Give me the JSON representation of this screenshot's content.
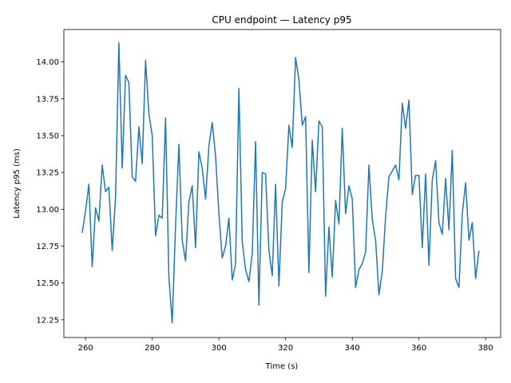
{
  "chart_data": {
    "type": "line",
    "title": "CPU endpoint — Latency p95",
    "xlabel": "Time (s)",
    "ylabel": "Latency p95 (ms)",
    "xlim": [
      253.5,
      384.5
    ],
    "ylim": [
      12.13,
      14.22
    ],
    "xticks": [
      260,
      280,
      300,
      320,
      340,
      360,
      380
    ],
    "yticks": [
      12.25,
      12.5,
      12.75,
      13.0,
      13.25,
      13.5,
      13.75,
      14.0
    ],
    "ytick_labels": [
      "12.25",
      "12.50",
      "12.75",
      "13.00",
      "13.25",
      "13.50",
      "13.75",
      "14.00"
    ],
    "grid": false,
    "color": "#1f77b4",
    "series": [
      {
        "x": [
          259,
          260,
          261,
          262,
          263,
          264,
          265,
          266,
          267,
          268,
          269,
          270,
          271,
          272,
          273,
          274,
          275,
          276,
          277,
          278,
          279,
          280,
          281,
          282,
          283,
          284,
          285,
          286,
          287,
          288,
          289,
          290,
          291,
          292,
          293,
          294,
          295,
          296,
          297,
          298,
          299,
          300,
          301,
          302,
          303,
          304,
          305,
          306,
          307,
          308,
          309,
          310,
          311,
          312,
          313,
          314,
          315,
          316,
          317,
          318,
          319,
          320,
          321,
          322,
          323,
          324,
          325,
          326,
          327,
          328,
          329,
          330,
          331,
          332,
          333,
          334,
          335,
          336,
          337,
          338,
          339,
          340,
          341,
          342,
          343,
          344,
          345,
          346,
          347,
          348,
          349,
          350,
          351,
          352,
          353,
          354,
          355,
          356,
          357,
          358,
          359,
          360,
          361,
          362,
          363,
          364,
          365,
          366,
          367,
          368,
          369,
          370,
          371,
          372,
          373,
          374,
          375,
          376,
          377,
          378
        ],
        "y": [
          12.84,
          12.99,
          13.17,
          12.61,
          13.01,
          12.92,
          13.3,
          13.12,
          13.15,
          12.72,
          13.08,
          14.13,
          13.28,
          13.91,
          13.86,
          13.22,
          13.19,
          13.56,
          13.31,
          14.01,
          13.65,
          13.5,
          12.82,
          12.96,
          12.94,
          13.62,
          12.54,
          12.23,
          12.89,
          13.44,
          12.79,
          12.65,
          13.05,
          13.16,
          12.74,
          13.39,
          13.28,
          13.07,
          13.43,
          13.59,
          13.36,
          12.97,
          12.67,
          12.75,
          12.94,
          12.52,
          12.63,
          13.82,
          12.78,
          12.59,
          12.51,
          12.7,
          13.46,
          12.35,
          13.25,
          13.24,
          12.72,
          12.55,
          13.17,
          12.48,
          13.05,
          13.14,
          13.57,
          13.42,
          14.03,
          13.88,
          13.57,
          13.63,
          12.57,
          13.47,
          13.12,
          13.6,
          13.56,
          12.41,
          12.88,
          12.54,
          13.06,
          12.9,
          13.55,
          12.97,
          13.16,
          13.07,
          12.47,
          12.59,
          12.63,
          12.71,
          13.3,
          12.93,
          12.79,
          12.42,
          12.58,
          12.95,
          13.22,
          13.26,
          13.3,
          13.2,
          13.72,
          13.55,
          13.74,
          13.1,
          13.23,
          13.23,
          12.74,
          13.24,
          12.62,
          13.2,
          13.33,
          12.91,
          12.83,
          13.21,
          12.86,
          13.4,
          12.53,
          12.47,
          12.97,
          13.18,
          12.79,
          12.91,
          12.53,
          12.72
        ]
      }
    ]
  }
}
